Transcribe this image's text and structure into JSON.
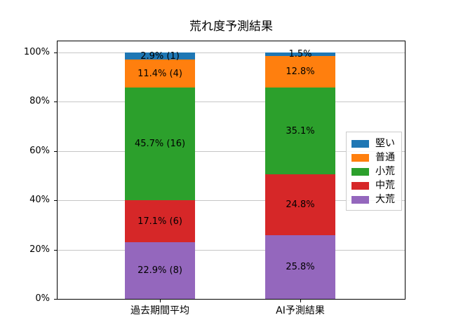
{
  "chart_data": {
    "type": "bar",
    "stacked": true,
    "orientation": "vertical",
    "title": "荒れ度予測結果",
    "categories": [
      "過去期間平均",
      "AI予測結果"
    ],
    "unit": "%",
    "series": [
      {
        "name": "堅い",
        "color": "#1f77b4",
        "values": [
          2.9,
          1.5
        ],
        "counts": [
          1,
          null
        ],
        "labels": [
          "2.9% (1)",
          "1.5%"
        ]
      },
      {
        "name": "普通",
        "color": "#ff7f0e",
        "values": [
          11.4,
          12.8
        ],
        "counts": [
          4,
          null
        ],
        "labels": [
          "11.4% (4)",
          "12.8%"
        ]
      },
      {
        "name": "小荒",
        "color": "#2ca02c",
        "values": [
          45.7,
          35.1
        ],
        "counts": [
          16,
          null
        ],
        "labels": [
          "45.7% (16)",
          "35.1%"
        ]
      },
      {
        "name": "中荒",
        "color": "#d62728",
        "values": [
          17.1,
          24.8
        ],
        "counts": [
          6,
          null
        ],
        "labels": [
          "17.1% (6)",
          "24.8%"
        ]
      },
      {
        "name": "大荒",
        "color": "#9467bd",
        "values": [
          22.9,
          25.8
        ],
        "counts": [
          8,
          null
        ],
        "labels": [
          "22.9% (8)",
          "25.8%"
        ]
      }
    ],
    "stack_order_bottom_to_top": [
      "大荒",
      "中荒",
      "小荒",
      "普通",
      "堅い"
    ],
    "yticks": [
      0,
      20,
      40,
      60,
      80,
      100
    ],
    "ytick_labels": [
      "0%",
      "20%",
      "40%",
      "60%",
      "80%",
      "100%"
    ],
    "ylim": [
      0,
      105
    ],
    "grid": true,
    "grid_color": "#c6c6c6",
    "text_color": "#000000",
    "background": "#ffffff",
    "legend": {
      "position": "center-right",
      "entries": [
        "堅い",
        "普通",
        "小荒",
        "中荒",
        "大荒"
      ]
    }
  }
}
